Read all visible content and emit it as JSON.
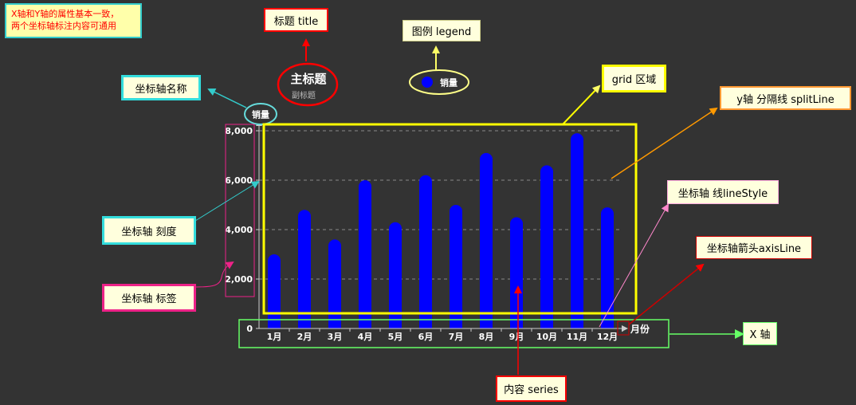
{
  "note": {
    "line1": "X轴和Y轴的属性基本一致，",
    "line2": "两个坐标轴标注内容可通用"
  },
  "labels": {
    "title": "标题 title",
    "legend": "图例 legend",
    "grid": "grid 区域",
    "axis_name": "坐标轴名称",
    "split_line": "y轴 分隔线 splitLine",
    "line_style": "坐标轴 线lineStyle",
    "axis_tick": "坐标轴 刻度",
    "axis_line": "坐标轴箭头axisLine",
    "axis_label": "坐标轴 标签",
    "x_axis": "X 轴",
    "series": "内容 series"
  },
  "title_bubble": {
    "main": "主标题",
    "sub": "副标题"
  },
  "colors": {
    "bar": "#0000ff",
    "grid_border": "#ffff00",
    "background": "#333333"
  },
  "chart_data": {
    "type": "bar",
    "legend": [
      "销量"
    ],
    "ylabel": "销量",
    "xlabel": "月份",
    "categories": [
      "1月",
      "2月",
      "3月",
      "4月",
      "5月",
      "6月",
      "7月",
      "8月",
      "9月",
      "10月",
      "11月",
      "12月"
    ],
    "series": [
      {
        "name": "销量",
        "values": [
          3000,
          4800,
          3600,
          6000,
          4300,
          6200,
          5000,
          7100,
          4500,
          6600,
          7900,
          4900
        ]
      }
    ],
    "ylim": [
      0,
      8000
    ],
    "yticks": [
      0,
      2000,
      4000,
      6000,
      8000
    ],
    "ytick_labels": [
      "0",
      "2,000",
      "4,000",
      "6,000",
      "8,000"
    ],
    "grid": true,
    "legend_position": "top-center"
  }
}
